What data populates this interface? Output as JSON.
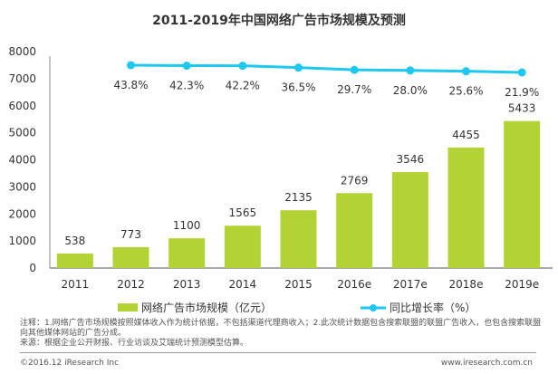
{
  "chart_data": {
    "type": "bar+line",
    "title": "2011-2019年中国网络广告市场规模及预测",
    "categories": [
      "2011",
      "2012",
      "2013",
      "2014",
      "2015",
      "2016e",
      "2017e",
      "2018e",
      "2019e"
    ],
    "series": [
      {
        "name": "网络广告市场规模（亿元）",
        "type": "bar",
        "color": "#b3d234",
        "values": [
          538,
          773,
          1100,
          1565,
          2135,
          2769,
          3546,
          4455,
          5433
        ]
      },
      {
        "name": "同比增长率（%）",
        "type": "line",
        "color": "#1ec8f0",
        "x": [
          "2012",
          "2013",
          "2014",
          "2015",
          "2016e",
          "2017e",
          "2018e",
          "2019e"
        ],
        "values": [
          43.8,
          42.3,
          42.2,
          36.5,
          29.7,
          28.0,
          25.6,
          21.9
        ],
        "labels": [
          "43.8%",
          "42.3%",
          "42.2%",
          "36.5%",
          "29.7%",
          "28.0%",
          "25.6%",
          "21.9%"
        ]
      }
    ],
    "ylim": [
      0,
      8000
    ],
    "yticks": [
      "0",
      "1000",
      "2000",
      "3000",
      "4000",
      "5000",
      "6000",
      "7000",
      "8000"
    ],
    "legend": "bottom"
  },
  "notes": {
    "line1": "注释：1.网络广告市场规模按照媒体收入作为统计依据，不包括渠道代理商收入；2.此次统计数据包含搜索联盟的联盟广告收入，也包含搜索联盟向其他媒体网站的广告分成。",
    "line2": "来源：根据企业公开财报、行业访谈及艾瑞统计预测模型估算。"
  },
  "footer": {
    "copyright": "©2016.12 iResearch Inc",
    "url": "www.iresearch.com.cn"
  }
}
